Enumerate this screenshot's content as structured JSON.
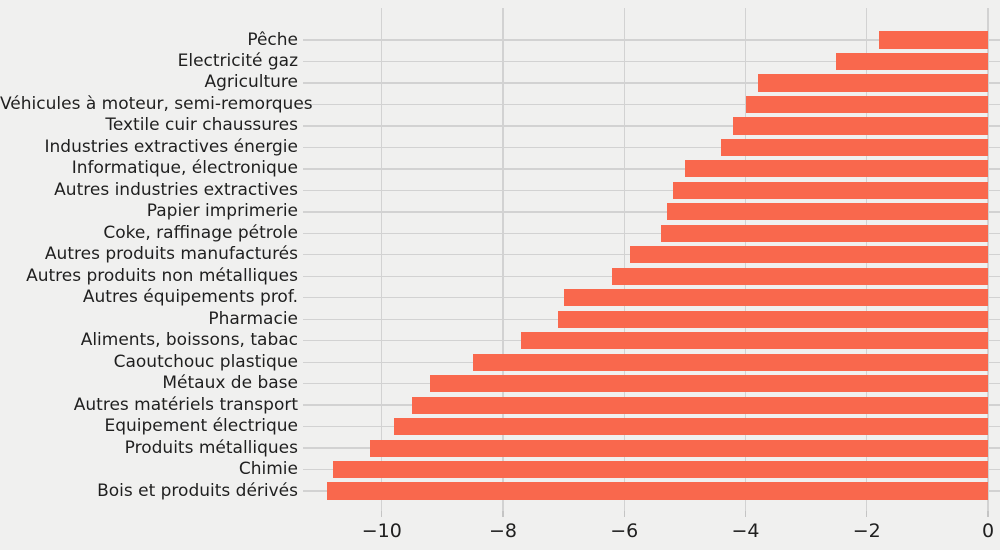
{
  "chart_data": {
    "type": "bar",
    "orientation": "horizontal",
    "title": "",
    "xlabel": "",
    "ylabel": "",
    "categories": [
      "Pêche",
      "Electricité gaz",
      "Agriculture",
      "Véhicules à moteur, semi-remorques",
      "Textile cuir chaussures",
      "Industries extractives énergie",
      "Informatique, électronique",
      "Autres industries extractives",
      "Papier imprimerie",
      "Coke, raffinage pétrole",
      "Autres produits manufacturés",
      "Autres produits non métalliques",
      "Autres équipements prof.",
      "Pharmacie",
      "Aliments, boissons, tabac",
      "Caoutchouc plastique",
      "Métaux de base",
      "Autres matériels transport",
      "Equipement électrique",
      "Produits métalliques",
      "Chimie",
      "Bois et produits dérivés"
    ],
    "values": [
      -1.8,
      -2.5,
      -3.8,
      -4.0,
      -4.2,
      -4.4,
      -5.0,
      -5.2,
      -5.3,
      -5.4,
      -5.9,
      -6.2,
      -7.0,
      -7.1,
      -7.7,
      -8.5,
      -9.2,
      -9.5,
      -9.8,
      -10.2,
      -10.8,
      -10.9
    ],
    "xticks": [
      -10,
      -8,
      -6,
      -4,
      -2,
      0
    ],
    "xtick_labels": [
      "−10",
      "−8",
      "−6",
      "−4",
      "−2",
      "0"
    ],
    "xlim": [
      -11.3,
      0.2
    ],
    "grid": true,
    "legend": null,
    "colors": {
      "bar": "#f9684d",
      "background": "#f0f0ef",
      "gridline": "#d2d2d2",
      "text": "#1f1f1f"
    }
  }
}
